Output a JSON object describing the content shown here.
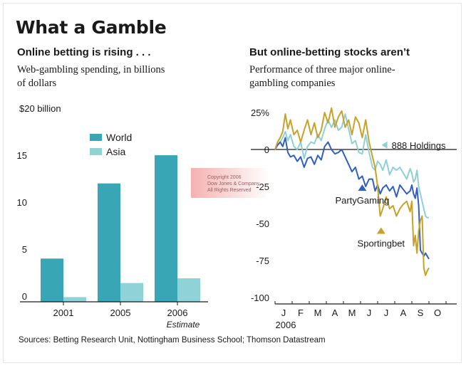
{
  "title": "What a Gamble",
  "left": {
    "subhead": "Online betting is rising . . .",
    "desc_line1": "Web-gambling spending, in billions",
    "desc_line2": "of dollars"
  },
  "right": {
    "subhead": "But online-betting stocks aren’t",
    "desc_line1": "Performance of three major online-",
    "desc_line2": "gambling companies"
  },
  "source": "Sources: Betting Research Unit, Nottingham Business School; Thomson Datastream",
  "watermark": [
    "Copyright 2006",
    "Dow Jones & Company",
    "All Rights Reserved"
  ],
  "colors": {
    "world": "#38a6b5",
    "asia": "#8fd3d6",
    "888": "#8ed0d6",
    "party": "#2f5fc4",
    "sporting": "#c8a227"
  },
  "chart_data": [
    {
      "type": "bar",
      "categories": [
        "2001",
        "2005",
        "2006"
      ],
      "category_note": {
        "2006": "Estimate"
      },
      "series": [
        {
          "name": "World",
          "values": [
            4.6,
            12.6,
            15.6
          ]
        },
        {
          "name": "Asia",
          "values": [
            0.5,
            2.0,
            2.5
          ]
        }
      ],
      "ylim": [
        0,
        20
      ],
      "yticks": [
        {
          "value": 0,
          "label": "0"
        },
        {
          "value": 5,
          "label": "5"
        },
        {
          "value": 10,
          "label": "10"
        },
        {
          "value": 15,
          "label": "15"
        },
        {
          "value": 20,
          "label": "$20 billion"
        }
      ],
      "legend": "top-left",
      "grid": false
    },
    {
      "type": "line",
      "xlabel": "2006",
      "xticks": [
        "J",
        "F",
        "M",
        "A",
        "M",
        "J",
        "J",
        "A",
        "S",
        "O"
      ],
      "ylim": [
        -100,
        25
      ],
      "yticks": [
        {
          "value": 25,
          "label": "25%"
        },
        {
          "value": 0,
          "label": "0"
        },
        {
          "value": -25,
          "label": "-25"
        },
        {
          "value": -50,
          "label": "-50"
        },
        {
          "value": -75,
          "label": "-75"
        },
        {
          "value": -100,
          "label": "-100"
        }
      ],
      "x_month_index": [
        0,
        0.15,
        0.3,
        0.45,
        0.6,
        0.75,
        0.9,
        1.1,
        1.3,
        1.5,
        1.7,
        1.9,
        2.1,
        2.3,
        2.5,
        2.7,
        2.9,
        3.1,
        3.3,
        3.5,
        3.7,
        3.9,
        4.1,
        4.3,
        4.5,
        4.7,
        4.9,
        5.1,
        5.3,
        5.5,
        5.7,
        5.85,
        6.0,
        6.15,
        6.3,
        6.5,
        6.7,
        6.9,
        7.1,
        7.3,
        7.5,
        7.7,
        7.9,
        8.0,
        8.1,
        8.2,
        8.3,
        8.4,
        8.5,
        8.6,
        8.7,
        8.8,
        8.9,
        9.0
      ],
      "series": [
        {
          "name": "888 Holdings",
          "values": [
            0,
            3,
            5,
            8,
            12,
            6,
            10,
            2,
            0,
            5,
            -6,
            2,
            5,
            4,
            10,
            6,
            14,
            20,
            15,
            20,
            13,
            15,
            24,
            14,
            4,
            6,
            -2,
            -3,
            10,
            -2,
            -12,
            -14,
            -8,
            -10,
            -14,
            -7,
            -17,
            -12,
            -14,
            -12,
            -16,
            -20,
            -13,
            -16,
            -22,
            -20,
            -14,
            -25,
            -30,
            -35,
            -40,
            -45,
            -46,
            -46
          ]
        },
        {
          "name": "PartyGaming",
          "values": [
            0,
            3,
            5,
            2,
            8,
            -2,
            -5,
            -4,
            -8,
            -5,
            -12,
            -6,
            -5,
            -10,
            -4,
            -7,
            2,
            5,
            0,
            -3,
            -2,
            0,
            -5,
            -10,
            -15,
            -12,
            -20,
            -18,
            -25,
            -20,
            -20,
            -28,
            -24,
            -30,
            -26,
            -24,
            -28,
            -25,
            -32,
            -24,
            -27,
            -30,
            -28,
            -24,
            -30,
            -33,
            -26,
            -38,
            -68,
            -70,
            -72,
            -70,
            -72,
            -74
          ]
        },
        {
          "name": "Sportingbet",
          "values": [
            0,
            5,
            8,
            12,
            24,
            14,
            20,
            10,
            13,
            5,
            13,
            20,
            10,
            18,
            8,
            13,
            25,
            18,
            28,
            15,
            22,
            26,
            15,
            20,
            10,
            22,
            18,
            8,
            20,
            5,
            -5,
            -12,
            -25,
            -45,
            -40,
            -32,
            -40,
            -38,
            -45,
            -40,
            -37,
            -35,
            -42,
            -35,
            -65,
            -58,
            -70,
            -55,
            -48,
            -45,
            -80,
            -85,
            -82,
            -80
          ]
        }
      ],
      "annotations": [
        {
          "text": "888 Holdings",
          "series": "888 Holdings",
          "month": 6.4,
          "value": 3
        },
        {
          "text": "PartyGaming",
          "series": "PartyGaming",
          "month": 5.1,
          "value": -27
        },
        {
          "text": "Sportingbet",
          "series": "Sportingbet",
          "month": 6.2,
          "value": -56
        }
      ],
      "grid": false
    }
  ]
}
